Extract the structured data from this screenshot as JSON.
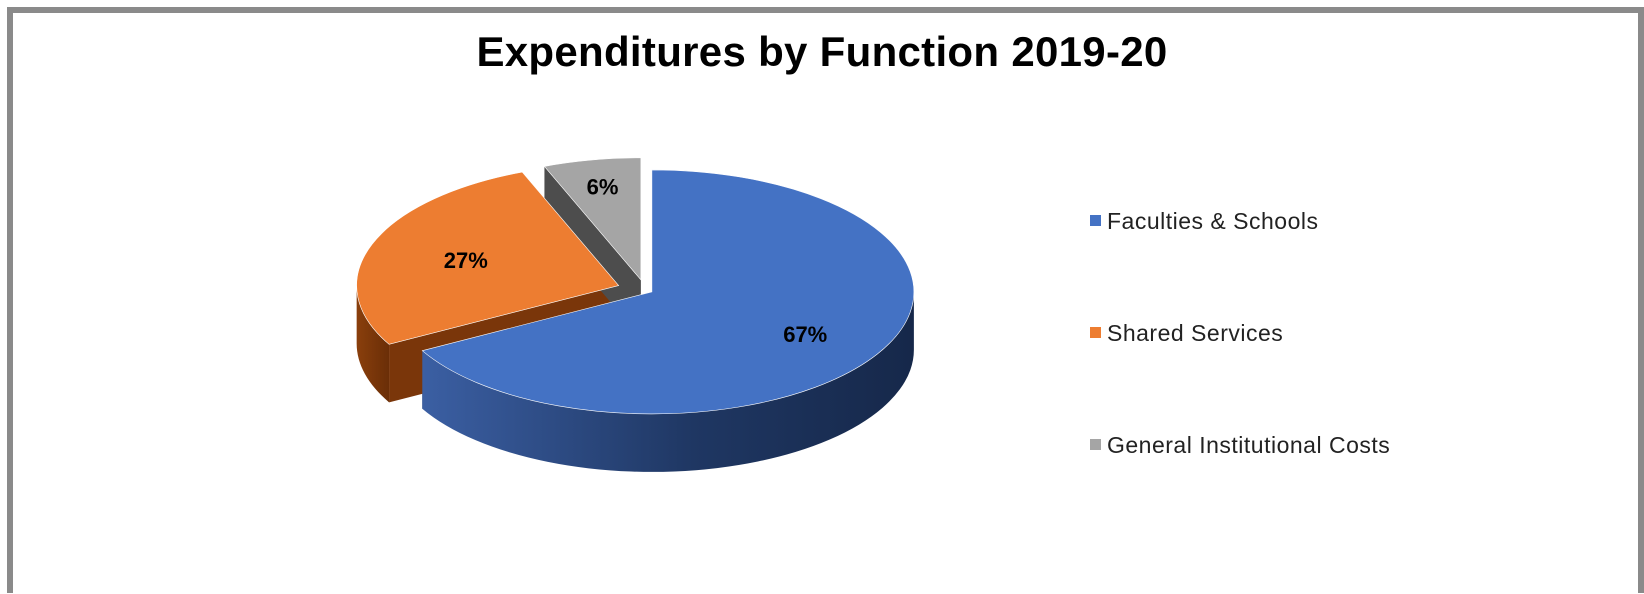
{
  "chart_data": {
    "type": "pie",
    "title": "Expenditures by Function 2019-20",
    "slices": [
      {
        "label": "Faculties & Schools",
        "value": 67,
        "display": "67%",
        "color": "#4472c4"
      },
      {
        "label": "Shared Services",
        "value": 27,
        "display": "27%",
        "color": "#ed7d31"
      },
      {
        "label": "General Institutional Costs",
        "value": 6,
        "display": "6%",
        "color": "#a5a5a5"
      }
    ],
    "exploded": true,
    "three_d": true,
    "legend_position": "right"
  }
}
